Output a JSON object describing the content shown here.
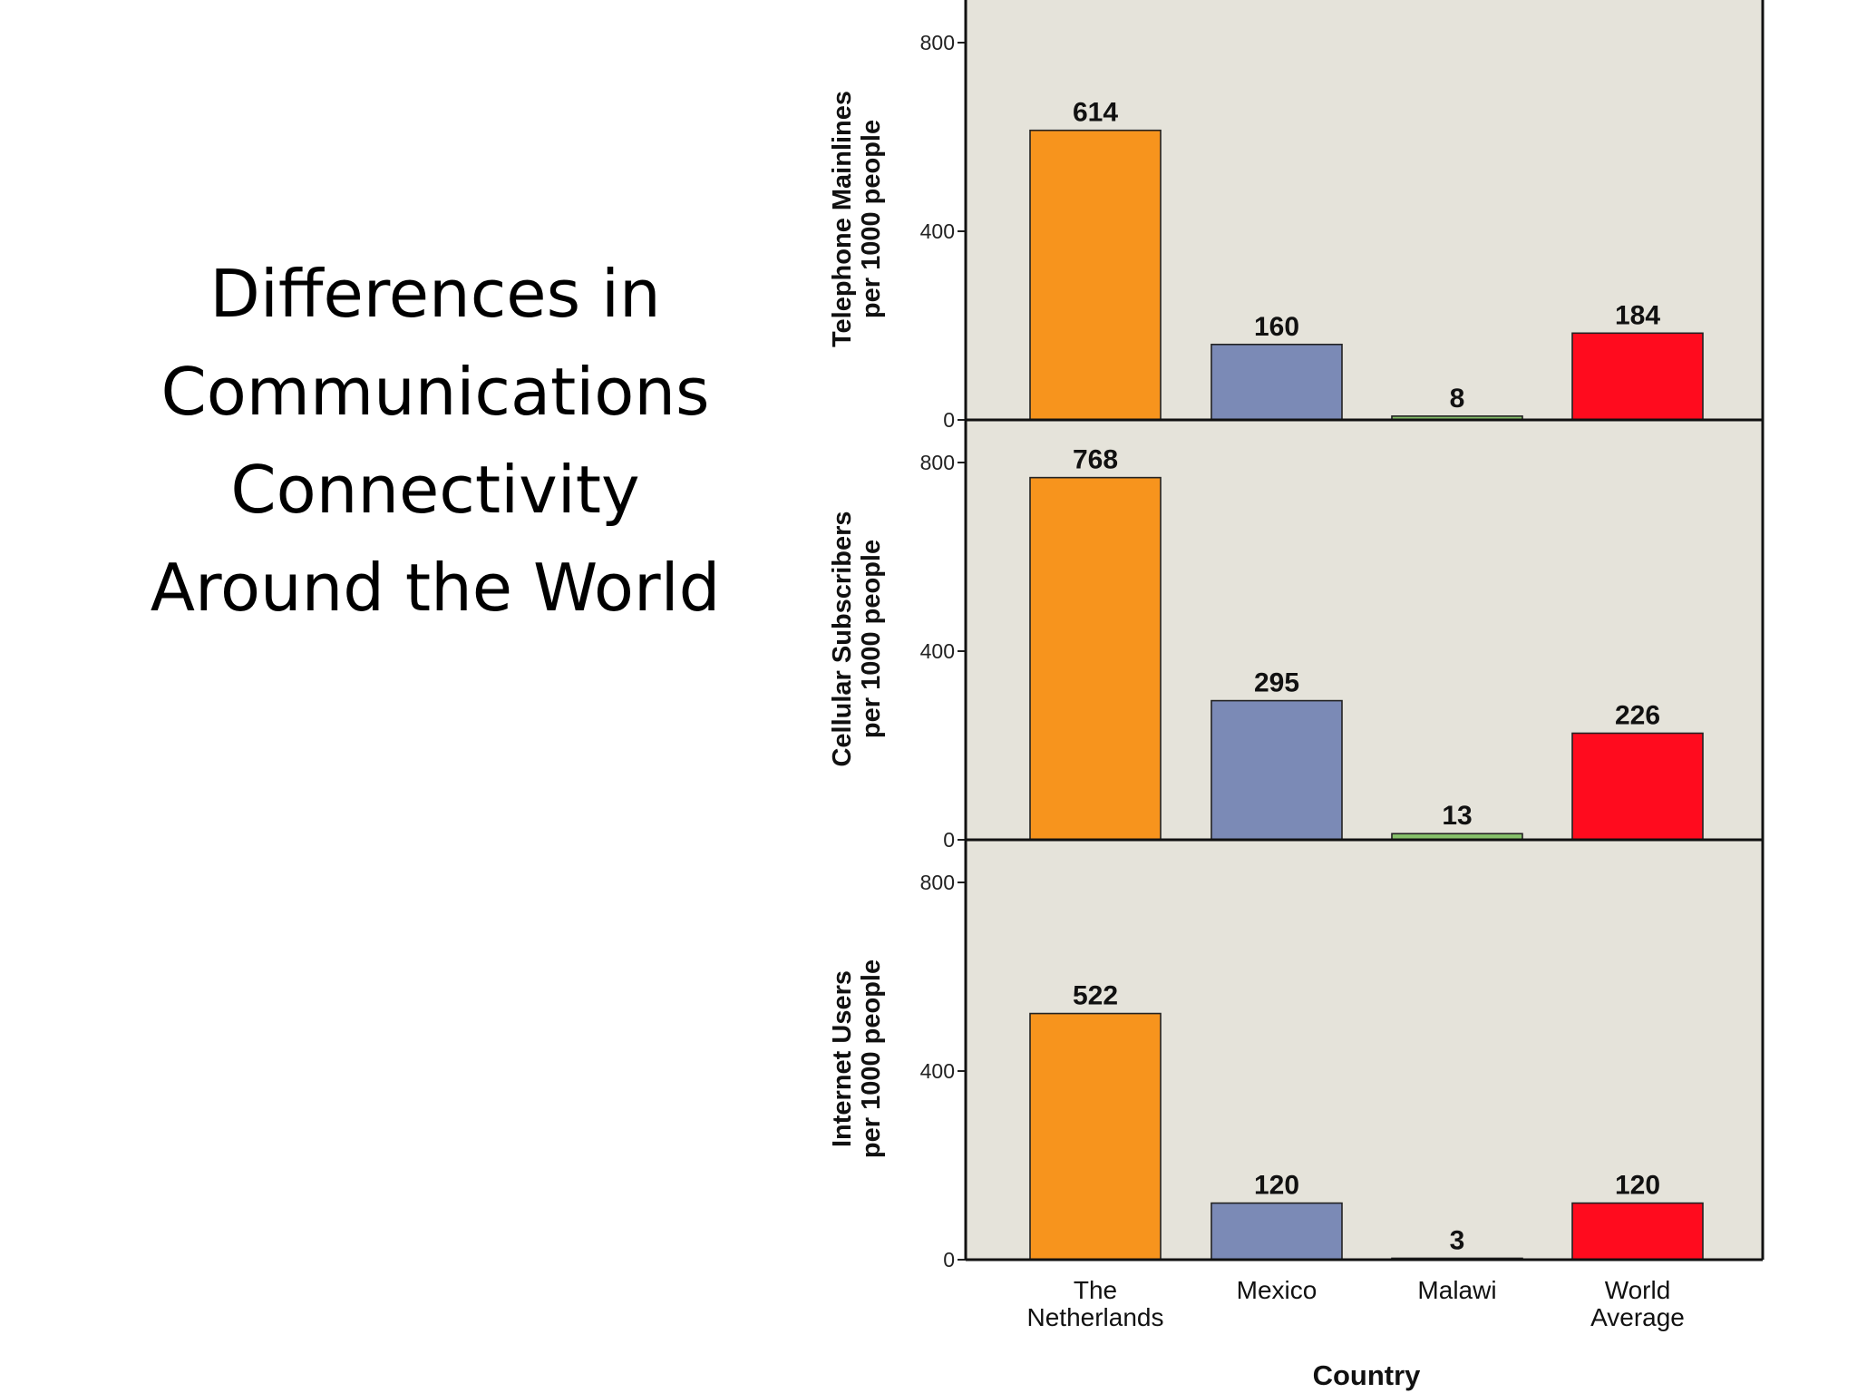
{
  "slide": {
    "title_lines": [
      "Differences in",
      "Communications",
      "Connectivity",
      "Around the World"
    ]
  },
  "chart_data": {
    "type": "bar",
    "xlabel": "Country",
    "categories": [
      [
        "The",
        "Netherlands"
      ],
      [
        "Mexico"
      ],
      [
        "Malawi"
      ],
      [
        "World",
        "Average"
      ]
    ],
    "colors": [
      "#f7941d",
      "#7b8ab6",
      "#86c06a",
      "#ff0b1e"
    ],
    "background": "#e5e3da",
    "grid": false,
    "panels": [
      {
        "ylabel": [
          "Telephone Mainlines",
          "per 1000 people"
        ],
        "values": [
          614,
          160,
          8,
          184
        ],
        "ylim": [
          0,
          890
        ],
        "yticks": [
          0,
          400,
          800
        ]
      },
      {
        "ylabel": [
          "Cellular Subscribers",
          "per 1000 people"
        ],
        "values": [
          768,
          295,
          13,
          226
        ],
        "ylim": [
          0,
          890
        ],
        "yticks": [
          0,
          400,
          800
        ]
      },
      {
        "ylabel": [
          "Internet Users",
          "per 1000 people"
        ],
        "values": [
          522,
          120,
          3,
          120
        ],
        "ylim": [
          0,
          890
        ],
        "yticks": [
          0,
          400,
          800
        ]
      }
    ]
  }
}
